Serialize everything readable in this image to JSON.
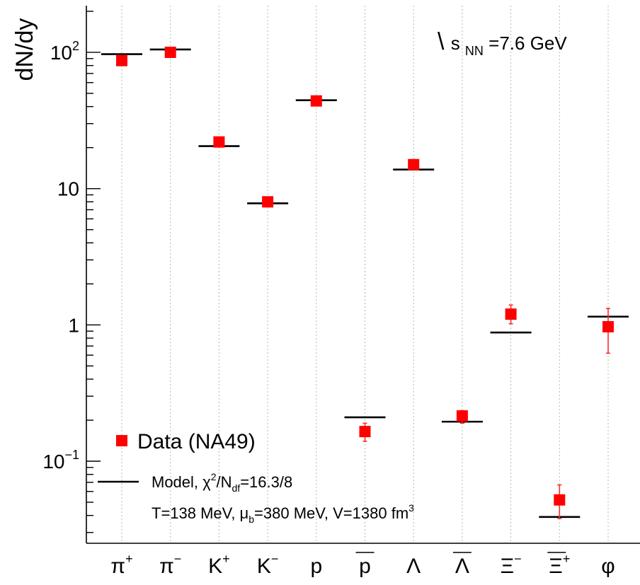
{
  "chart_data": {
    "type": "scatter",
    "ylabel": "dN/dy",
    "yscale": "log",
    "ylim": [
      0.025,
      220
    ],
    "grid": {
      "vertical": true,
      "horizontal": false
    },
    "annotation": {
      "sqrt": "\\",
      "s": "s",
      "sub": "NN",
      "rest": "=7.6 GeV"
    },
    "y_ticks": [
      {
        "value": 100,
        "base": "10",
        "exp": "2"
      },
      {
        "value": 10,
        "base": "10",
        "exp": ""
      },
      {
        "value": 1,
        "base": "1",
        "exp": ""
      },
      {
        "value": 0.1,
        "base": "10",
        "exp": "−1"
      }
    ],
    "categories": [
      {
        "base": "π",
        "sup": "+",
        "over": false
      },
      {
        "base": "π",
        "sup": "−",
        "over": false
      },
      {
        "base": "K",
        "sup": "+",
        "over": false
      },
      {
        "base": "K",
        "sup": "−",
        "over": false
      },
      {
        "base": "p",
        "sup": "",
        "over": false
      },
      {
        "base": "p",
        "sup": "",
        "over": true
      },
      {
        "base": "Λ",
        "sup": "",
        "over": false
      },
      {
        "base": "Λ",
        "sup": "",
        "over": true
      },
      {
        "base": "Ξ",
        "sup": "−",
        "over": false
      },
      {
        "base": "Ξ",
        "sup": "+",
        "over": true
      },
      {
        "base": "φ",
        "sup": "",
        "over": false
      }
    ],
    "series": [
      {
        "name": "Data (NA49)",
        "color": "#ff0000",
        "values": [
          87,
          100,
          22,
          8.0,
          44,
          0.165,
          15,
          0.215,
          1.2,
          0.052,
          0.97
        ],
        "err_low": [
          0,
          0,
          0,
          0,
          0,
          0.14,
          0,
          0.19,
          1.02,
          0.038,
          0.62
        ],
        "err_high": [
          0,
          0,
          0,
          0,
          0,
          0.19,
          0,
          0.235,
          1.4,
          0.067,
          1.32
        ]
      },
      {
        "name": "Model",
        "color": "#000000",
        "values": [
          97,
          105,
          20.5,
          7.8,
          44.5,
          0.21,
          13.8,
          0.195,
          0.88,
          0.039,
          1.15
        ]
      }
    ],
    "legend": {
      "data_label": "Data (NA49)",
      "model_label": "Model, ",
      "chi": "χ",
      "chi_sup": "2",
      "ndf_N": "/N",
      "ndf_sub": "df",
      "ndf_value": "=16.3/8",
      "params_T": "T=138 MeV, ",
      "params_mu": "μ",
      "params_mu_sub": "b",
      "params_mid": "=380 MeV, V=1380 fm",
      "params_sup": "3"
    }
  }
}
